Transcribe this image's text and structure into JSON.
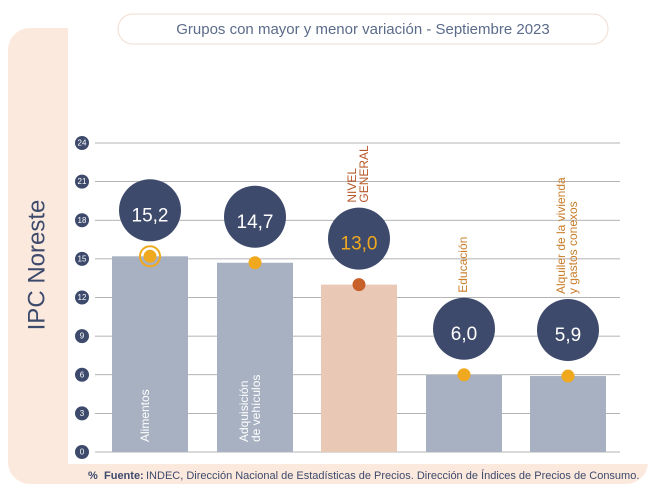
{
  "chart_data": {
    "type": "bar",
    "title": "Grupos con mayor y menor variación - Septiembre 2023",
    "y_label": "IPC Noreste",
    "categories": [
      "Alimentos",
      "Adquisición\nde vehículos",
      "NIVEL\nGENERAL",
      "Educación",
      "Alquiler de la vivienda\ny gastos conexos"
    ],
    "values": [
      15.2,
      14.7,
      13.0,
      6.0,
      5.9
    ],
    "value_labels": [
      "15,2",
      "14,7",
      "13,0",
      "6,0",
      "5,9"
    ],
    "colors": [
      "#a7b1c1",
      "#a7b1c1",
      "#e9c9b6",
      "#a7b1c1",
      "#a7b1c1"
    ],
    "ylim": [
      0,
      24
    ],
    "yticks": [
      0,
      3,
      6,
      9,
      12,
      15,
      18,
      21,
      24
    ],
    "grid": true,
    "source_icon": "%",
    "source_label": "Fuente:",
    "source": "INDEC, Dirección Nacional de Estadísticas de Precios. Dirección de Índices de Precios de Consumo."
  }
}
